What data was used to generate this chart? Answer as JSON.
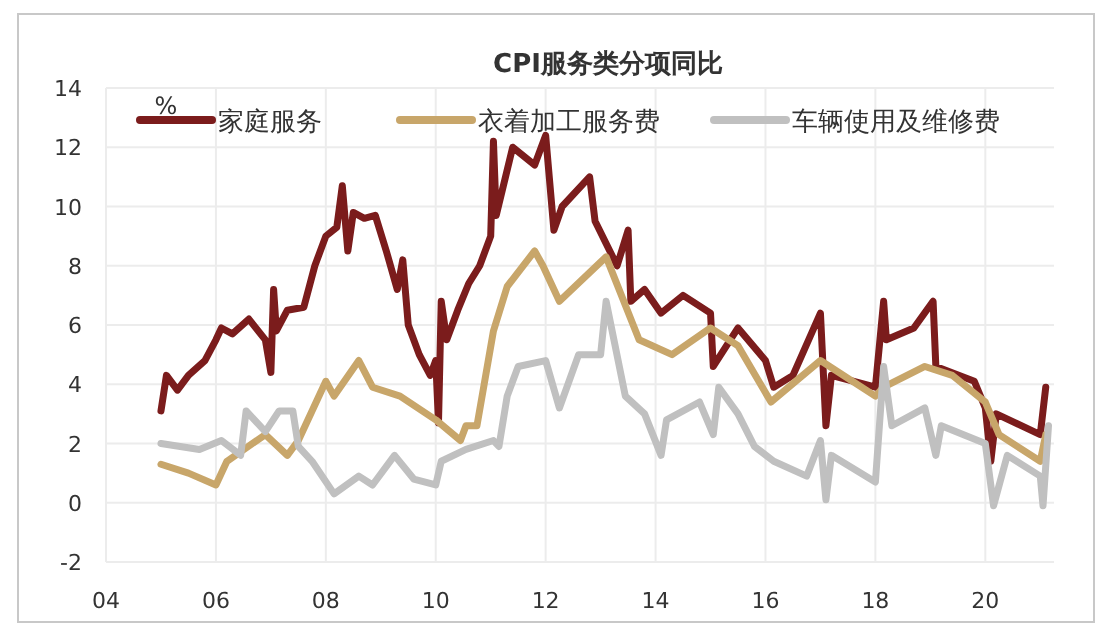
{
  "chart_data": {
    "type": "line",
    "title": "CPI服务类分项同比",
    "ylabel": "%",
    "xlim": [
      2004,
      2021.25
    ],
    "xticks": [
      {
        "value": 2004,
        "label": "04"
      },
      {
        "value": 2006,
        "label": "06"
      },
      {
        "value": 2008,
        "label": "08"
      },
      {
        "value": 2010,
        "label": "10"
      },
      {
        "value": 2012,
        "label": "12"
      },
      {
        "value": 2014,
        "label": "14"
      },
      {
        "value": 2016,
        "label": "16"
      },
      {
        "value": 2018,
        "label": "18"
      },
      {
        "value": 2020,
        "label": "20"
      }
    ],
    "ylim": [
      -2,
      14
    ],
    "yticks": [
      -2,
      0,
      2,
      4,
      6,
      8,
      10,
      12,
      14
    ],
    "grid": true,
    "legend": "top",
    "marker": "none",
    "line_style": "solid",
    "series": [
      {
        "name": "家庭服务",
        "color": "#7b1c1c",
        "x": [
          2005.0,
          2005.1,
          2005.3,
          2005.5,
          2005.8,
          2006.0,
          2006.1,
          2006.3,
          2006.6,
          2006.9,
          2007.0,
          2007.05,
          2007.1,
          2007.3,
          2007.6,
          2007.8,
          2008.0,
          2008.2,
          2008.3,
          2008.4,
          2008.5,
          2008.7,
          2008.9,
          2009.1,
          2009.3,
          2009.4,
          2009.5,
          2009.7,
          2009.9,
          2010.0,
          2010.05,
          2010.1,
          2010.2,
          2010.4,
          2010.6,
          2010.8,
          2011.0,
          2011.05,
          2011.1,
          2011.4,
          2011.8,
          2012.0,
          2012.15,
          2012.3,
          2012.8,
          2012.9,
          2013.3,
          2013.5,
          2013.55,
          2013.8,
          2014.1,
          2014.5,
          2015.0,
          2015.05,
          2015.5,
          2016.0,
          2016.15,
          2016.5,
          2017.0,
          2017.1,
          2017.2,
          2018.0,
          2018.15,
          2018.2,
          2018.7,
          2019.05,
          2019.1,
          2019.8,
          2020.0,
          2020.1,
          2020.2,
          2021.0,
          2021.1
        ],
        "values": [
          3.1,
          4.3,
          3.8,
          4.3,
          4.8,
          5.5,
          5.9,
          5.7,
          6.2,
          5.5,
          4.4,
          7.2,
          5.8,
          6.5,
          6.6,
          8.0,
          9.0,
          9.3,
          10.7,
          8.5,
          9.8,
          9.6,
          9.7,
          8.5,
          7.2,
          8.2,
          6.0,
          5.0,
          4.3,
          4.8,
          2.7,
          6.8,
          5.5,
          6.5,
          7.4,
          8.0,
          9.0,
          12.2,
          9.7,
          12.0,
          11.4,
          12.4,
          9.2,
          10.0,
          11.0,
          9.5,
          8.0,
          9.2,
          6.8,
          7.2,
          6.4,
          7.0,
          6.4,
          4.6,
          5.9,
          4.8,
          3.9,
          4.3,
          6.4,
          2.6,
          4.3,
          3.9,
          6.8,
          5.5,
          5.9,
          6.8,
          4.6,
          4.1,
          3.2,
          1.4,
          3.0,
          2.3,
          3.9
        ]
      },
      {
        "name": "衣着加工服务费",
        "color": "#c8a66a",
        "x": [
          2005.0,
          2005.5,
          2006.0,
          2006.2,
          2006.9,
          2007.3,
          2007.5,
          2008.0,
          2008.15,
          2008.6,
          2008.85,
          2009.35,
          2010.0,
          2010.45,
          2010.55,
          2010.75,
          2011.05,
          2011.3,
          2011.8,
          2011.95,
          2012.25,
          2013.1,
          2013.7,
          2014.3,
          2015.0,
          2015.5,
          2016.1,
          2017.0,
          2018.0,
          2018.15,
          2018.9,
          2019.4,
          2020.0,
          2020.25,
          2021.0,
          2021.1
        ],
        "values": [
          1.3,
          1.0,
          0.6,
          1.4,
          2.3,
          1.6,
          2.1,
          4.1,
          3.6,
          4.8,
          3.9,
          3.6,
          2.8,
          2.1,
          2.6,
          2.6,
          5.8,
          7.3,
          8.5,
          8.0,
          6.8,
          8.3,
          5.5,
          5.0,
          5.9,
          5.3,
          3.4,
          4.8,
          3.6,
          3.9,
          4.6,
          4.3,
          3.4,
          2.3,
          1.4,
          2.3
        ]
      },
      {
        "name": "车辆使用及维修费",
        "color": "#c0c0c0",
        "x": [
          2005.0,
          2005.7,
          2006.1,
          2006.45,
          2006.55,
          2006.9,
          2007.15,
          2007.4,
          2007.5,
          2007.75,
          2008.15,
          2008.6,
          2008.85,
          2009.25,
          2009.6,
          2010.0,
          2010.1,
          2010.55,
          2011.05,
          2011.15,
          2011.3,
          2011.5,
          2012.0,
          2012.25,
          2012.6,
          2013.0,
          2013.1,
          2013.45,
          2013.8,
          2014.1,
          2014.2,
          2014.8,
          2015.05,
          2015.15,
          2015.5,
          2015.8,
          2016.15,
          2016.75,
          2017.0,
          2017.1,
          2017.2,
          2018.0,
          2018.15,
          2018.3,
          2018.9,
          2019.1,
          2019.2,
          2020.0,
          2020.15,
          2020.4,
          2021.0,
          2021.05,
          2021.15
        ],
        "values": [
          2.0,
          1.8,
          2.1,
          1.6,
          3.1,
          2.4,
          3.1,
          3.1,
          1.9,
          1.4,
          0.3,
          0.9,
          0.6,
          1.6,
          0.8,
          0.6,
          1.4,
          1.8,
          2.1,
          1.9,
          3.6,
          4.6,
          4.8,
          3.2,
          5.0,
          5.0,
          6.8,
          3.6,
          3.0,
          1.6,
          2.8,
          3.4,
          2.3,
          3.9,
          3.0,
          1.9,
          1.4,
          0.9,
          2.1,
          0.1,
          1.6,
          0.7,
          4.6,
          2.6,
          3.2,
          1.6,
          2.6,
          2.0,
          -0.1,
          1.6,
          0.9,
          -0.1,
          2.6
        ]
      }
    ]
  }
}
